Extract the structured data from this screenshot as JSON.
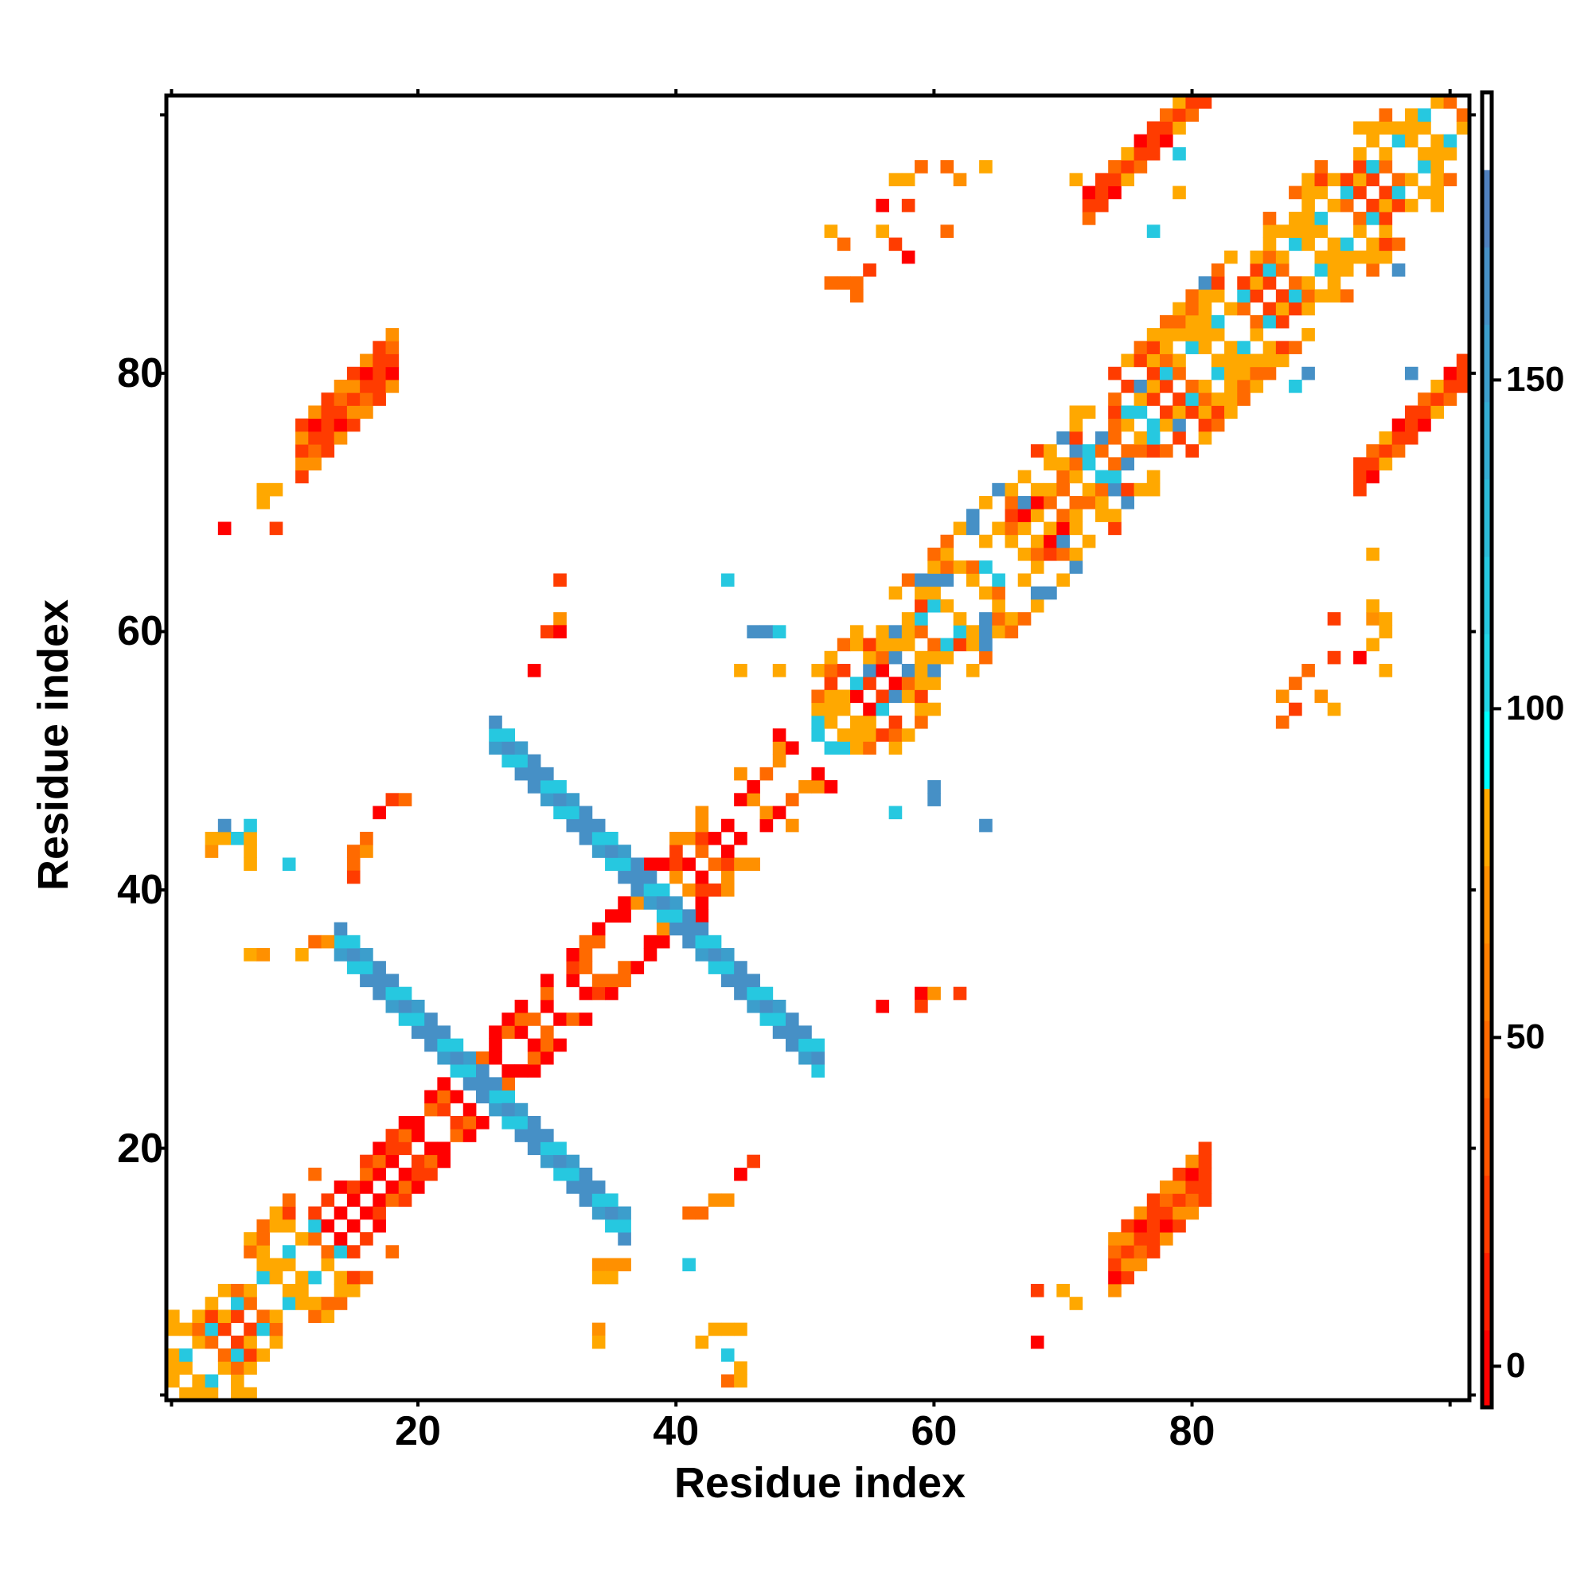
{
  "chart_data": {
    "type": "heatmap",
    "title": "",
    "xlabel": "Residue index",
    "ylabel": "Residue index",
    "xlim": [
      0.5,
      101.5
    ],
    "ylim": [
      0.5,
      101.5
    ],
    "n_residues": 101,
    "x_ticks": [
      "20",
      "40",
      "60",
      "80"
    ],
    "y_ticks": [
      "20",
      "40",
      "60",
      "80"
    ],
    "x_tick_values": [
      20,
      40,
      60,
      80
    ],
    "y_tick_values": [
      20,
      40,
      60,
      80
    ],
    "minor_tick_values": [
      0,
      20,
      40,
      60,
      80,
      100
    ],
    "colorbar": {
      "range": [
        -6.25,
        193.75
      ],
      "ticks": [
        "0",
        "50",
        "100",
        "150"
      ],
      "tick_values": [
        0,
        50,
        100,
        150
      ],
      "bin_colors": [
        "#ff0000",
        "#ff1e00",
        "#ff3c00",
        "#ff5500",
        "#ff6a00",
        "#ff7f00",
        "#ff9000",
        "#ffa800",
        "#00ffff",
        "#22d6e6",
        "#26c8e0",
        "#2cbad8",
        "#34acd2",
        "#3c9ecc",
        "#4690c6",
        "#5080be",
        "#ffffff"
      ]
    },
    "diagonal_segments": [
      {
        "range": [
          1,
          12
        ],
        "width": 6,
        "values": [
          0,
          25,
          45,
          45,
          85,
          85,
          115,
          null
        ]
      },
      {
        "range": [
          13,
          36
        ],
        "width": 3,
        "values": [
          0,
          0,
          25,
          45,
          null
        ]
      },
      {
        "range": [
          37,
          50
        ],
        "width": 4,
        "values": [
          0,
          25,
          45,
          70,
          null
        ]
      },
      {
        "range": [
          51,
          76
        ],
        "width": 6,
        "values": [
          0,
          25,
          45,
          45,
          85,
          85,
          115,
          160,
          null
        ]
      },
      {
        "range": [
          77,
          101
        ],
        "width": 6,
        "values": [
          0,
          25,
          45,
          45,
          85,
          85,
          115,
          null
        ]
      }
    ],
    "antiparallel_bands": [
      {
        "sum": 50,
        "range": [
          14,
          36
        ],
        "halfwidth": 1,
        "values": [
          160,
          160,
          150,
          115
        ]
      },
      {
        "sum": 78,
        "range": [
          26,
          51
        ],
        "halfwidth": 1,
        "values": [
          160,
          160,
          150,
          115
        ]
      }
    ],
    "parallel_bands": [
      {
        "offset": -63,
        "range": [
          74,
          81
        ],
        "halfwidth": 2,
        "values": [
          0,
          25,
          45,
          70
        ]
      },
      {
        "offset": 63,
        "range": [
          11,
          18
        ],
        "halfwidth": 2,
        "values": [
          0,
          25,
          45,
          70
        ]
      },
      {
        "offset": 21,
        "range": [
          72,
          81
        ],
        "halfwidth": 1,
        "values": [
          0,
          25,
          45,
          85
        ]
      },
      {
        "offset": -21,
        "range": [
          93,
          101
        ],
        "halfwidth": 1,
        "values": [
          0,
          25,
          45,
          85
        ]
      }
    ],
    "cells": [
      [
        54,
        86,
        45
      ],
      [
        54,
        87,
        45
      ],
      [
        55,
        88,
        25
      ],
      [
        53,
        90,
        45
      ],
      [
        52,
        91,
        85
      ],
      [
        56,
        91,
        85
      ],
      [
        57,
        90,
        25
      ],
      [
        58,
        93,
        25
      ],
      [
        57,
        95,
        85
      ],
      [
        58,
        95,
        85
      ],
      [
        59,
        96,
        45
      ],
      [
        61,
        96,
        45
      ],
      [
        62,
        95,
        70
      ],
      [
        64,
        96,
        85
      ],
      [
        61,
        91,
        45
      ],
      [
        56,
        93,
        0
      ],
      [
        58,
        89,
        0
      ],
      [
        52,
        87,
        45
      ],
      [
        53,
        87,
        45
      ],
      [
        88,
        54,
        25
      ],
      [
        88,
        56,
        45
      ],
      [
        89,
        57,
        45
      ],
      [
        90,
        55,
        70
      ],
      [
        91,
        58,
        25
      ],
      [
        93,
        58,
        0
      ],
      [
        95,
        57,
        85
      ],
      [
        95,
        60,
        85
      ],
      [
        94,
        61,
        70
      ],
      [
        91,
        61,
        25
      ],
      [
        87,
        55,
        70
      ],
      [
        87,
        53,
        45
      ],
      [
        91,
        54,
        85
      ],
      [
        94,
        59,
        25
      ],
      [
        41,
        15,
        45
      ],
      [
        42,
        15,
        45
      ],
      [
        43,
        16,
        70
      ],
      [
        44,
        16,
        70
      ],
      [
        45,
        18,
        0
      ],
      [
        46,
        19,
        25
      ],
      [
        41,
        11,
        115
      ],
      [
        42,
        5,
        85
      ],
      [
        43,
        6,
        85
      ],
      [
        44,
        6,
        85
      ],
      [
        45,
        6,
        85
      ],
      [
        44,
        4,
        115
      ],
      [
        45,
        3,
        85
      ],
      [
        44,
        2,
        45
      ],
      [
        45,
        2,
        85
      ],
      [
        34,
        6,
        70
      ],
      [
        34,
        5,
        85
      ],
      [
        34,
        11,
        70
      ],
      [
        35,
        11,
        70
      ],
      [
        36,
        11,
        70
      ],
      [
        34,
        10,
        85
      ],
      [
        35,
        10,
        85
      ],
      [
        4,
        43,
        70
      ],
      [
        4,
        44,
        85
      ],
      [
        5,
        44,
        85
      ],
      [
        5,
        45,
        160
      ],
      [
        6,
        44,
        115
      ],
      [
        7,
        43,
        85
      ],
      [
        7,
        44,
        85
      ],
      [
        7,
        45,
        115
      ],
      [
        7,
        42,
        85
      ],
      [
        10,
        42,
        115
      ],
      [
        15,
        42,
        45
      ],
      [
        15,
        43,
        45
      ],
      [
        16,
        43,
        70
      ],
      [
        16,
        44,
        45
      ],
      [
        15,
        41,
        25
      ],
      [
        17,
        46,
        0
      ],
      [
        18,
        47,
        25
      ],
      [
        19,
        47,
        45
      ],
      [
        5,
        68,
        0
      ],
      [
        9,
        68,
        25
      ],
      [
        8,
        70,
        85
      ],
      [
        8,
        71,
        85
      ],
      [
        9,
        71,
        85
      ],
      [
        31,
        64,
        25
      ],
      [
        31,
        61,
        70
      ],
      [
        30,
        60,
        25
      ],
      [
        31,
        60,
        0
      ],
      [
        29,
        57,
        0
      ],
      [
        44,
        64,
        115
      ],
      [
        46,
        60,
        160
      ],
      [
        47,
        60,
        160
      ],
      [
        48,
        60,
        115
      ],
      [
        45,
        57,
        85
      ],
      [
        48,
        57,
        85
      ],
      [
        56,
        31,
        0
      ],
      [
        59,
        32,
        0
      ],
      [
        60,
        32,
        70
      ],
      [
        62,
        32,
        25
      ],
      [
        59,
        31,
        25
      ],
      [
        57,
        46,
        115
      ],
      [
        60,
        47,
        160
      ],
      [
        60,
        48,
        160
      ],
      [
        64,
        45,
        160
      ],
      [
        68,
        9,
        25
      ],
      [
        70,
        9,
        85
      ],
      [
        71,
        8,
        85
      ],
      [
        68,
        5,
        0
      ],
      [
        71,
        95,
        85
      ],
      [
        77,
        91,
        115
      ],
      [
        81,
        87,
        160
      ],
      [
        96,
        88,
        160
      ],
      [
        79,
        94,
        85
      ],
      [
        79,
        97,
        115
      ],
      [
        97,
        80,
        160
      ],
      [
        89,
        80,
        160
      ],
      [
        88,
        79,
        115
      ],
      [
        94,
        66,
        85
      ],
      [
        94,
        62,
        85
      ],
      [
        95,
        61,
        85
      ],
      [
        94,
        59,
        85
      ],
      [
        7,
        35,
        85
      ],
      [
        8,
        35,
        70
      ],
      [
        11,
        35,
        85
      ],
      [
        12,
        36,
        45
      ],
      [
        13,
        36,
        70
      ]
    ]
  }
}
